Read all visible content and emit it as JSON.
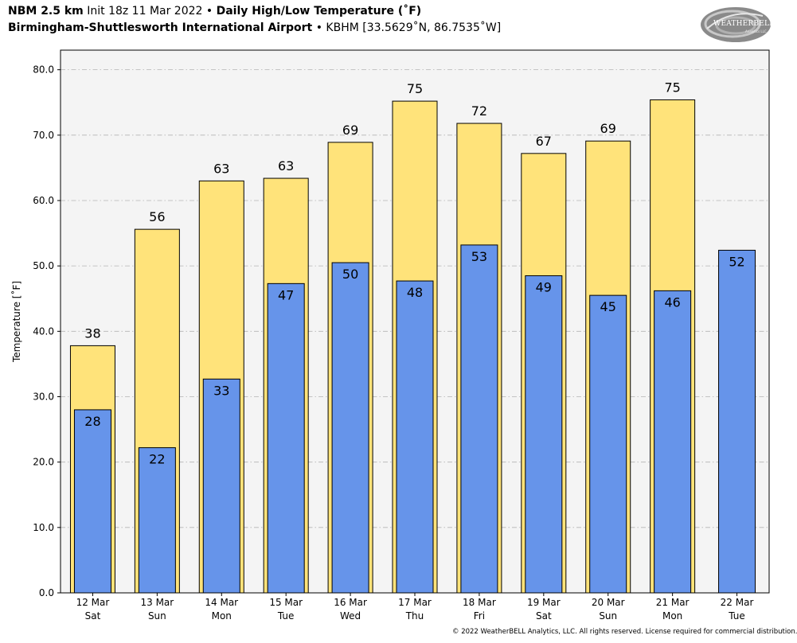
{
  "header": {
    "model": "NBM 2.5 km",
    "init": "Init 18z 11 Mar 2022",
    "bullet": "•",
    "product": "Daily High/Low Temperature (˚F)",
    "station": "Birmingham-Shuttlesworth International Airport",
    "station_id": "KBHM [33.5629˚N, 86.7535˚W]"
  },
  "logo": {
    "name": "WeatherBELL",
    "text": "WEATHERBELL",
    "sub": "Analytics LLC"
  },
  "footer": {
    "copyright": "© 2022 WeatherBELL Analytics, LLC. All rights reserved. License required for commercial distribution."
  },
  "colors": {
    "high": "#ffe37a",
    "low": "#6694ea",
    "plot_bg": "#f4f4f4",
    "grid": "#b4b4b4"
  },
  "chart_data": {
    "type": "bar",
    "ylabel": "Temperature [˚F]",
    "ylim": [
      0,
      83
    ],
    "yticks": [
      0,
      10,
      20,
      30,
      40,
      50,
      60,
      70,
      80
    ],
    "ytick_labels": [
      "0.0",
      "10.0",
      "20.0",
      "30.0",
      "40.0",
      "50.0",
      "60.0",
      "70.0",
      "80.0"
    ],
    "grid": true,
    "categories": [
      "12 Mar Sat",
      "13 Mar Sun",
      "14 Mar Mon",
      "15 Mar Tue",
      "16 Mar Wed",
      "17 Mar Thu",
      "18 Mar Fri",
      "19 Mar Sat",
      "20 Mar Sun",
      "21 Mar Mon",
      "22 Mar Tue"
    ],
    "date_labels": [
      "12 Mar",
      "13 Mar",
      "14 Mar",
      "15 Mar",
      "16 Mar",
      "17 Mar",
      "18 Mar",
      "19 Mar",
      "20 Mar",
      "21 Mar",
      "22 Mar"
    ],
    "day_labels": [
      "Sat",
      "Sun",
      "Mon",
      "Tue",
      "Wed",
      "Thu",
      "Fri",
      "Sat",
      "Sun",
      "Mon",
      "Tue"
    ],
    "series": [
      {
        "values": [
          37.8,
          55.6,
          63.0,
          63.4,
          68.9,
          75.2,
          71.8,
          67.2,
          69.1,
          75.4,
          null
        ],
        "labels": [
          "38",
          "56",
          "63",
          "63",
          "69",
          "75",
          "72",
          "67",
          "69",
          "75",
          ""
        ]
      },
      {
        "values": [
          28.0,
          22.2,
          32.7,
          47.3,
          50.5,
          47.7,
          53.2,
          48.5,
          45.5,
          46.2,
          52.4
        ],
        "labels": [
          "28",
          "22",
          "33",
          "47",
          "50",
          "48",
          "53",
          "49",
          "45",
          "46",
          "52"
        ]
      }
    ]
  }
}
